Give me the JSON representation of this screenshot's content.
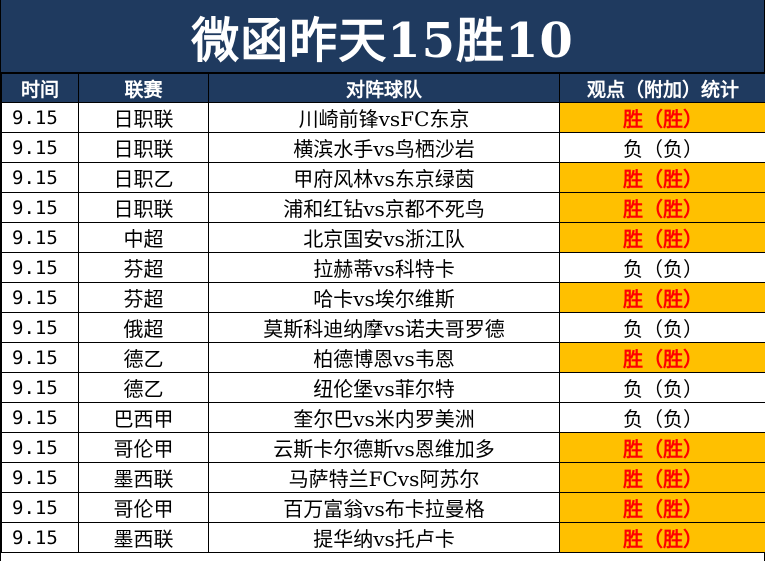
{
  "title": "微函昨天15胜10",
  "headers": {
    "time": "时间",
    "league": "联赛",
    "match": "对阵球队",
    "view": "观点（附加）统计"
  },
  "colors": {
    "header_bg": "#1f3a5f",
    "win_bg": "#ffc000",
    "win_text": "#ff0000"
  },
  "rows": [
    {
      "time": "9.15",
      "league": "日职联",
      "match": "川崎前锋vsFC东京",
      "view": "胜（胜）",
      "result": "win"
    },
    {
      "time": "9.15",
      "league": "日职联",
      "match": "横滨水手vs鸟栖沙岩",
      "view": "负（负）",
      "result": "loss"
    },
    {
      "time": "9.15",
      "league": "日职乙",
      "match": "甲府风林vs东京绿茵",
      "view": "胜（胜）",
      "result": "win"
    },
    {
      "time": "9.15",
      "league": "日职联",
      "match": "浦和红钻vs京都不死鸟",
      "view": "胜（胜）",
      "result": "win"
    },
    {
      "time": "9.15",
      "league": "中超",
      "match": "北京国安vs浙江队",
      "view": "胜（胜）",
      "result": "win"
    },
    {
      "time": "9.15",
      "league": "芬超",
      "match": "拉赫蒂vs科特卡",
      "view": "负（负）",
      "result": "loss"
    },
    {
      "time": "9.15",
      "league": "芬超",
      "match": "哈卡vs埃尔维斯",
      "view": "胜（胜）",
      "result": "win"
    },
    {
      "time": "9.15",
      "league": "俄超",
      "match": "莫斯科迪纳摩vs诺夫哥罗德",
      "view": "负（负）",
      "result": "loss"
    },
    {
      "time": "9.15",
      "league": "德乙",
      "match": "柏德博恩vs韦恩",
      "view": "胜（胜）",
      "result": "win"
    },
    {
      "time": "9.15",
      "league": "德乙",
      "match": "纽伦堡vs菲尔特",
      "view": "负（负）",
      "result": "loss"
    },
    {
      "time": "9.15",
      "league": "巴西甲",
      "match": "奎尔巴vs米内罗美洲",
      "view": "负（负）",
      "result": "loss"
    },
    {
      "time": "9.15",
      "league": "哥伦甲",
      "match": "云斯卡尔德斯vs恩维加多",
      "view": "胜（胜）",
      "result": "win"
    },
    {
      "time": "9.15",
      "league": "墨西联",
      "match": "马萨特兰FCvs阿苏尔",
      "view": "胜（胜）",
      "result": "win"
    },
    {
      "time": "9.15",
      "league": "哥伦甲",
      "match": "百万富翁vs布卡拉曼格",
      "view": "胜（胜）",
      "result": "win"
    },
    {
      "time": "9.15",
      "league": "墨西联",
      "match": "提华纳vs托卢卡",
      "view": "胜（胜）",
      "result": "win"
    }
  ]
}
